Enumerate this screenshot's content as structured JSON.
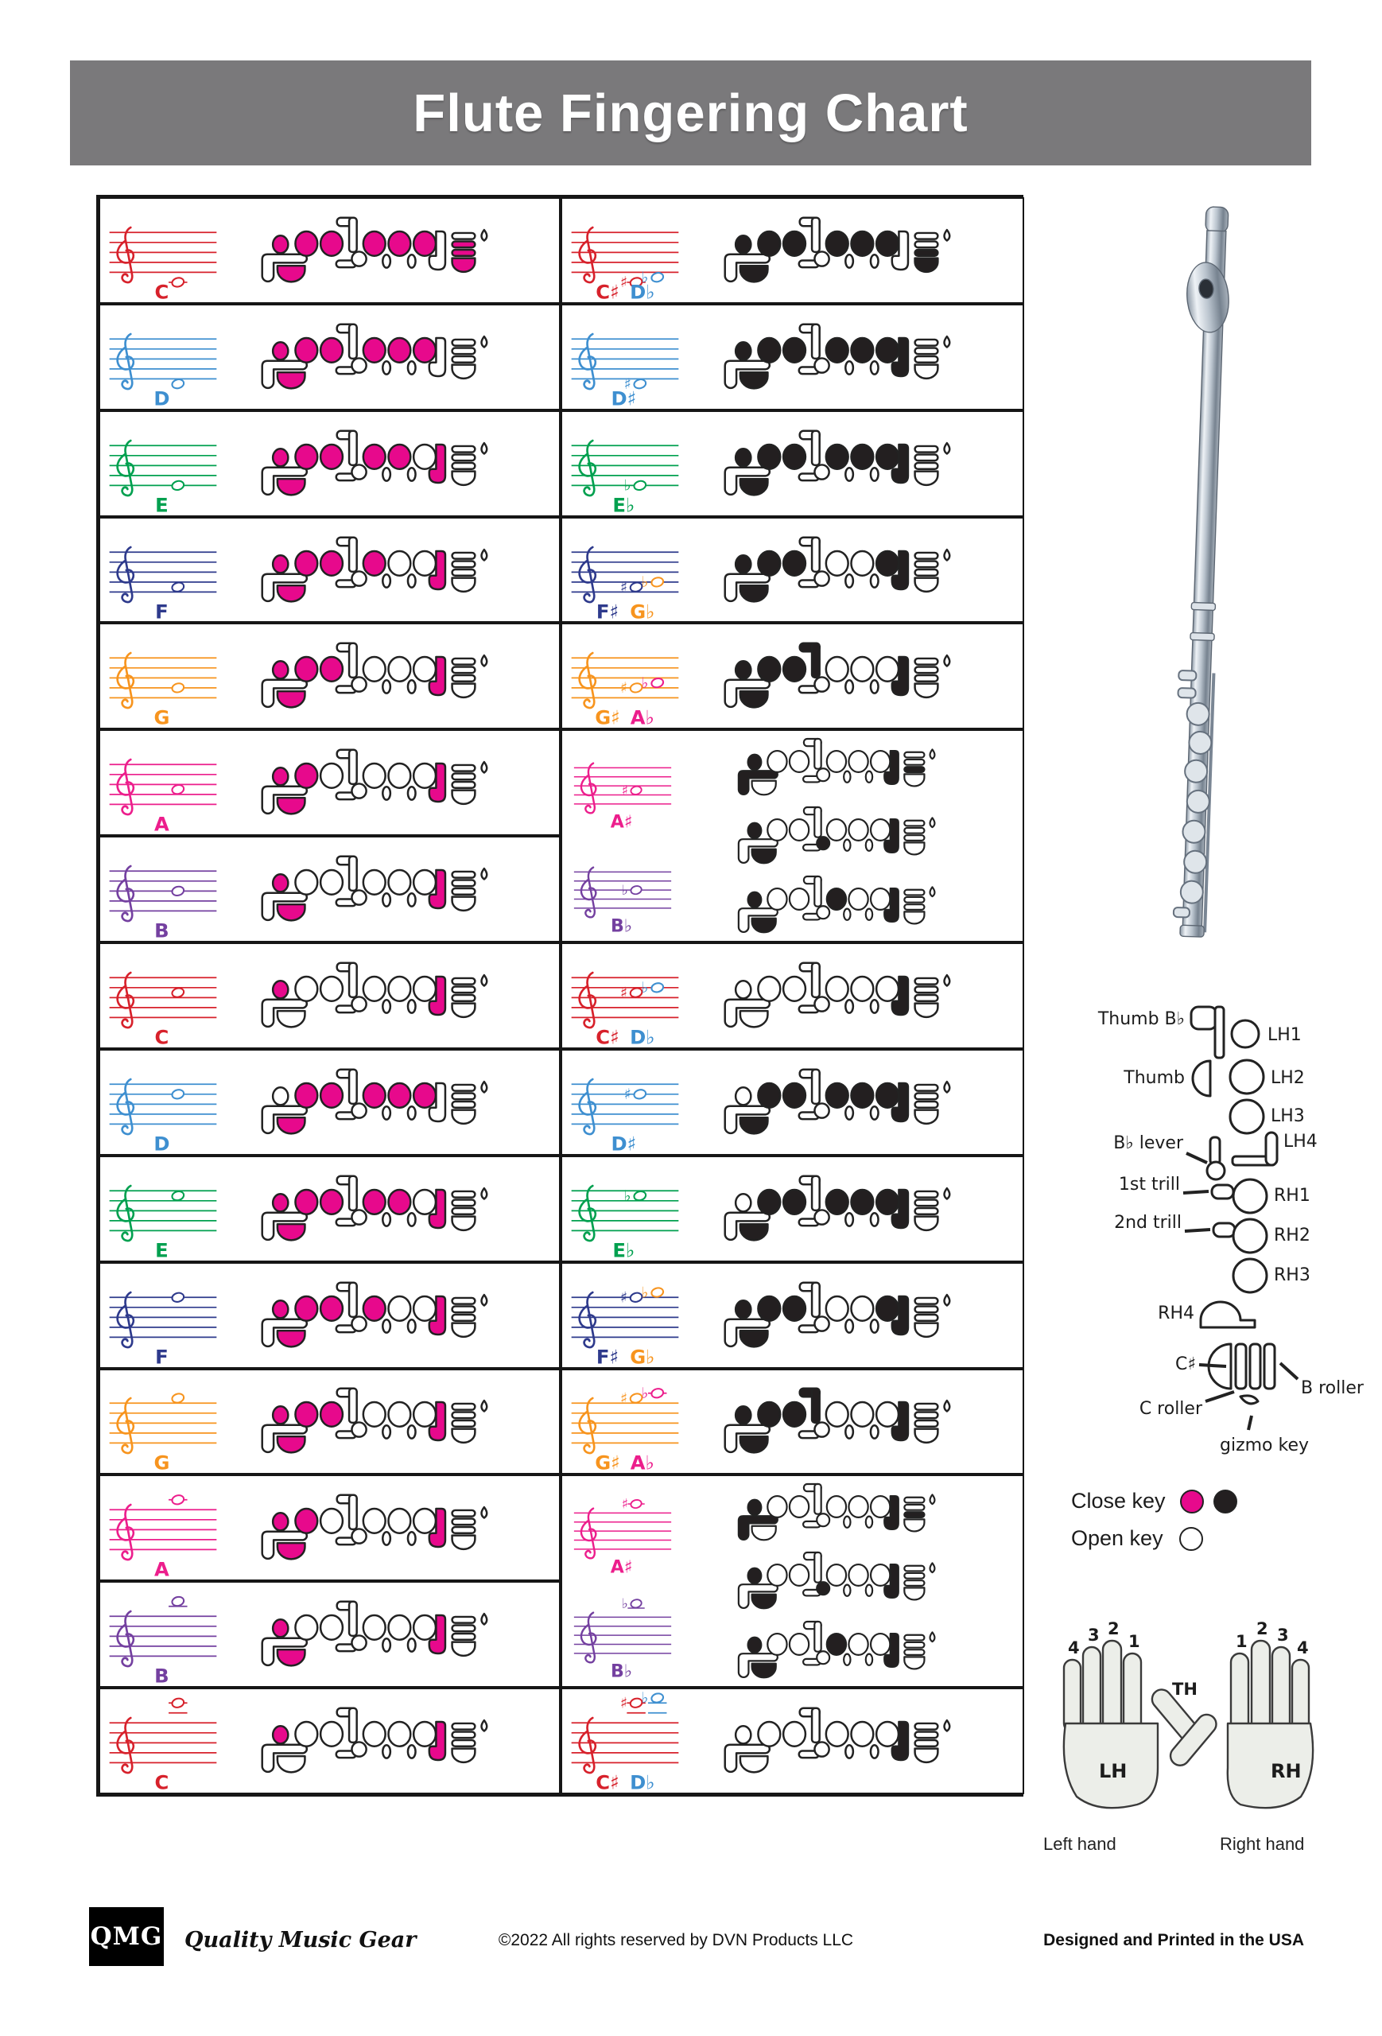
{
  "title": "Flute Fingering Chart",
  "colors": {
    "red": "#D7212B",
    "blue": "#3E8FD0",
    "green": "#00A04F",
    "navy": "#2E3A8C",
    "orange": "#F7941E",
    "pink": "#EC1E8C",
    "purple": "#7440A0",
    "close_pink": "#E7098C",
    "close_black": "#231F20",
    "title_gray": "#7A797B",
    "outline": "#222222"
  },
  "legend": {
    "close": "Close key",
    "open": "Open key"
  },
  "keymap": {
    "thumb_bb": "Thumb B♭",
    "thumb": "Thumb",
    "bb_lever": "B♭ lever",
    "trill1": "1st trill",
    "trill2": "2nd trill",
    "rh4": "RH4",
    "csharp": "C♯",
    "c_roller": "C roller",
    "b_roller": "B roller",
    "gizmo": "gizmo key",
    "lh1": "LH1",
    "lh2": "LH2",
    "lh3": "LH3",
    "lh4": "LH4",
    "rh1": "RH1",
    "rh2": "RH2",
    "rh3": "RH3"
  },
  "hands": {
    "lh": "LH",
    "rh": "RH",
    "th": "TH",
    "lh_fingers": [
      "4",
      "3",
      "2",
      "1"
    ],
    "rh_fingers": [
      "1",
      "2",
      "3",
      "4"
    ],
    "left_caption": "Left hand",
    "right_caption": "Right hand"
  },
  "footer": {
    "logo": "QMG",
    "tagline": "Quality Music Gear",
    "copyright": "©2022 All rights reserved by DVN Products LLC",
    "printed": "Designed and Printed in the USA"
  },
  "chart": {
    "ink_left": "close_pink",
    "ink_right": "close_black",
    "left": [
      {
        "color": "red",
        "names": [
          {
            "t": "C",
            "c": "red"
          }
        ],
        "notes": [
          {
            "s": -2,
            "c": "red"
          }
        ],
        "pressed": [
          "th",
          "l1",
          "l2",
          "l3",
          "r1",
          "r2",
          "r3",
          "cb",
          "xb",
          "xd"
        ]
      },
      {
        "color": "blue",
        "names": [
          {
            "t": "D",
            "c": "blue"
          }
        ],
        "notes": [
          {
            "s": -1,
            "c": "blue"
          }
        ],
        "pressed": [
          "th",
          "l1",
          "l2",
          "l3",
          "r1",
          "r2",
          "r3"
        ]
      },
      {
        "color": "green",
        "names": [
          {
            "t": "E",
            "c": "green"
          }
        ],
        "notes": [
          {
            "s": 0,
            "c": "green"
          }
        ],
        "pressed": [
          "th",
          "l1",
          "l2",
          "l3",
          "r1",
          "r2",
          "r4"
        ]
      },
      {
        "color": "navy",
        "names": [
          {
            "t": "F",
            "c": "navy"
          }
        ],
        "notes": [
          {
            "s": 1,
            "c": "navy"
          }
        ],
        "pressed": [
          "th",
          "l1",
          "l2",
          "l3",
          "r1",
          "r4"
        ]
      },
      {
        "color": "orange",
        "names": [
          {
            "t": "G",
            "c": "orange"
          }
        ],
        "notes": [
          {
            "s": 2,
            "c": "orange"
          }
        ],
        "pressed": [
          "th",
          "l1",
          "l2",
          "l3",
          "r4"
        ]
      },
      {
        "color": "pink",
        "names": [
          {
            "t": "A",
            "c": "pink"
          }
        ],
        "notes": [
          {
            "s": 3,
            "c": "pink"
          }
        ],
        "pressed": [
          "th",
          "l1",
          "l2",
          "r4"
        ]
      },
      {
        "color": "purple",
        "names": [
          {
            "t": "B",
            "c": "purple"
          }
        ],
        "notes": [
          {
            "s": 4,
            "c": "purple"
          }
        ],
        "pressed": [
          "th",
          "l1",
          "r4"
        ]
      },
      {
        "color": "red",
        "names": [
          {
            "t": "C",
            "c": "red"
          }
        ],
        "notes": [
          {
            "s": 5,
            "c": "red"
          }
        ],
        "pressed": [
          "l1",
          "r4"
        ]
      },
      {
        "color": "blue",
        "names": [
          {
            "t": "D",
            "c": "blue"
          }
        ],
        "notes": [
          {
            "s": 6,
            "c": "blue"
          }
        ],
        "pressed": [
          "th",
          "l2",
          "l3",
          "r1",
          "r2",
          "r3"
        ]
      },
      {
        "color": "green",
        "names": [
          {
            "t": "E",
            "c": "green"
          }
        ],
        "notes": [
          {
            "s": 7,
            "c": "green"
          }
        ],
        "pressed": [
          "th",
          "l1",
          "l2",
          "l3",
          "r1",
          "r2",
          "r4"
        ]
      },
      {
        "color": "navy",
        "names": [
          {
            "t": "F",
            "c": "navy"
          }
        ],
        "notes": [
          {
            "s": 8,
            "c": "navy"
          }
        ],
        "pressed": [
          "th",
          "l1",
          "l2",
          "l3",
          "r1",
          "r4"
        ]
      },
      {
        "color": "orange",
        "names": [
          {
            "t": "G",
            "c": "orange"
          }
        ],
        "notes": [
          {
            "s": 9,
            "c": "orange"
          }
        ],
        "pressed": [
          "th",
          "l1",
          "l2",
          "l3",
          "r4"
        ]
      },
      {
        "color": "pink",
        "names": [
          {
            "t": "A",
            "c": "pink"
          }
        ],
        "notes": [
          {
            "s": 10,
            "c": "pink"
          }
        ],
        "pressed": [
          "th",
          "l1",
          "l2",
          "r4"
        ]
      },
      {
        "color": "purple",
        "names": [
          {
            "t": "B",
            "c": "purple"
          }
        ],
        "notes": [
          {
            "s": 11,
            "c": "purple"
          }
        ],
        "pressed": [
          "th",
          "l1",
          "r4"
        ]
      },
      {
        "color": "red",
        "names": [
          {
            "t": "C",
            "c": "red"
          }
        ],
        "notes": [
          {
            "s": 12,
            "c": "red"
          }
        ],
        "pressed": [
          "l1",
          "r4"
        ]
      }
    ],
    "right": [
      {
        "span": 1,
        "staves": [
          {
            "color": "red",
            "names": [
              {
                "t": "C♯",
                "c": "red"
              },
              {
                "t": "D♭",
                "c": "blue"
              }
            ],
            "notes": [
              {
                "a": "♯",
                "s": -2,
                "c": "red"
              },
              {
                "a": "♭",
                "s": -1,
                "c": "blue"
              }
            ]
          }
        ],
        "fingerings": [
          [
            "th",
            "l1",
            "l2",
            "l3",
            "r1",
            "r2",
            "r3",
            "xb",
            "xd"
          ]
        ]
      },
      {
        "span": 1,
        "staves": [
          {
            "color": "blue",
            "names": [
              {
                "t": "D♯",
                "c": "blue"
              }
            ],
            "notes": [
              {
                "a": "♯",
                "s": -1,
                "c": "blue"
              }
            ]
          }
        ],
        "fingerings": [
          [
            "th",
            "l1",
            "l2",
            "l3",
            "r1",
            "r2",
            "r3",
            "r4"
          ]
        ]
      },
      {
        "span": 1,
        "staves": [
          {
            "color": "green",
            "names": [
              {
                "t": "E♭",
                "c": "green"
              }
            ],
            "notes": [
              {
                "a": "♭",
                "s": 0,
                "c": "green"
              }
            ]
          }
        ],
        "fingerings": [
          [
            "th",
            "l1",
            "l2",
            "l3",
            "r1",
            "r2",
            "r3",
            "r4"
          ]
        ]
      },
      {
        "span": 1,
        "staves": [
          {
            "color": "navy",
            "names": [
              {
                "t": "F♯",
                "c": "navy"
              },
              {
                "t": "G♭",
                "c": "orange"
              }
            ],
            "notes": [
              {
                "a": "♯",
                "s": 1,
                "c": "navy"
              },
              {
                "a": "♭",
                "s": 2,
                "c": "orange"
              }
            ]
          }
        ],
        "fingerings": [
          [
            "th",
            "l1",
            "l2",
            "l3",
            "r3",
            "r4"
          ]
        ]
      },
      {
        "span": 1,
        "staves": [
          {
            "color": "orange",
            "names": [
              {
                "t": "G♯",
                "c": "orange"
              },
              {
                "t": "A♭",
                "c": "pink"
              }
            ],
            "notes": [
              {
                "a": "♯",
                "s": 2,
                "c": "orange"
              },
              {
                "a": "♭",
                "s": 3,
                "c": "pink"
              }
            ]
          }
        ],
        "fingerings": [
          [
            "th",
            "l1",
            "l2",
            "l3",
            "g",
            "r4"
          ]
        ]
      },
      {
        "span": 2,
        "staves": [
          {
            "color": "pink",
            "names": [
              {
                "t": "A♯",
                "c": "pink"
              }
            ],
            "notes": [
              {
                "a": "♯",
                "s": 3,
                "c": "pink"
              }
            ]
          },
          {
            "color": "purple",
            "names": [
              {
                "t": "B♭",
                "c": "purple"
              }
            ],
            "notes": [
              {
                "a": "♭",
                "s": 4,
                "c": "purple"
              }
            ]
          }
        ],
        "fingerings": [
          [
            "tbb",
            "l1",
            "r4",
            "xb"
          ],
          [
            "th",
            "l1",
            "bl",
            "r4"
          ],
          [
            "th",
            "l1",
            "r1",
            "r4"
          ]
        ]
      },
      {
        "span": 1,
        "staves": [
          {
            "color": "red",
            "names": [
              {
                "t": "C♯",
                "c": "red"
              },
              {
                "t": "D♭",
                "c": "blue"
              }
            ],
            "notes": [
              {
                "a": "♯",
                "s": 5,
                "c": "red"
              },
              {
                "a": "♭",
                "s": 6,
                "c": "blue"
              }
            ]
          }
        ],
        "fingerings": [
          [
            "r4"
          ]
        ]
      },
      {
        "span": 1,
        "staves": [
          {
            "color": "blue",
            "names": [
              {
                "t": "D♯",
                "c": "blue"
              }
            ],
            "notes": [
              {
                "a": "♯",
                "s": 6,
                "c": "blue"
              }
            ]
          }
        ],
        "fingerings": [
          [
            "th",
            "l2",
            "l3",
            "r1",
            "r2",
            "r3",
            "r4"
          ]
        ]
      },
      {
        "span": 1,
        "staves": [
          {
            "color": "green",
            "names": [
              {
                "t": "E♭",
                "c": "green"
              }
            ],
            "notes": [
              {
                "a": "♭",
                "s": 7,
                "c": "green"
              }
            ]
          }
        ],
        "fingerings": [
          [
            "th",
            "l2",
            "l3",
            "r1",
            "r2",
            "r3",
            "r4"
          ]
        ]
      },
      {
        "span": 1,
        "staves": [
          {
            "color": "navy",
            "names": [
              {
                "t": "F♯",
                "c": "navy"
              },
              {
                "t": "G♭",
                "c": "orange"
              }
            ],
            "notes": [
              {
                "a": "♯",
                "s": 8,
                "c": "navy"
              },
              {
                "a": "♭",
                "s": 9,
                "c": "orange"
              }
            ]
          }
        ],
        "fingerings": [
          [
            "th",
            "l1",
            "l2",
            "l3",
            "r3",
            "r4"
          ]
        ]
      },
      {
        "span": 1,
        "staves": [
          {
            "color": "orange",
            "names": [
              {
                "t": "G♯",
                "c": "orange"
              },
              {
                "t": "A♭",
                "c": "pink"
              }
            ],
            "notes": [
              {
                "a": "♯",
                "s": 9,
                "c": "orange"
              },
              {
                "a": "♭",
                "s": 10,
                "c": "pink"
              }
            ]
          }
        ],
        "fingerings": [
          [
            "th",
            "l1",
            "l2",
            "l3",
            "g",
            "r4"
          ]
        ]
      },
      {
        "span": 2,
        "staves": [
          {
            "color": "pink",
            "names": [
              {
                "t": "A♯",
                "c": "pink"
              }
            ],
            "notes": [
              {
                "a": "♯",
                "s": 10,
                "c": "pink"
              }
            ]
          },
          {
            "color": "purple",
            "names": [
              {
                "t": "B♭",
                "c": "purple"
              }
            ],
            "notes": [
              {
                "a": "♭",
                "s": 11,
                "c": "purple"
              }
            ]
          }
        ],
        "fingerings": [
          [
            "tbb",
            "l1",
            "r4",
            "xb"
          ],
          [
            "th",
            "l1",
            "bl",
            "r4"
          ],
          [
            "th",
            "l1",
            "r1",
            "r4"
          ]
        ]
      },
      {
        "span": 1,
        "staves": [
          {
            "color": "red",
            "names": [
              {
                "t": "C♯",
                "c": "red"
              },
              {
                "t": "D♭",
                "c": "blue"
              }
            ],
            "notes": [
              {
                "a": "♯",
                "s": 12,
                "c": "red"
              },
              {
                "a": "♭",
                "s": 13,
                "c": "blue"
              }
            ]
          }
        ],
        "fingerings": [
          [
            "r4"
          ]
        ]
      }
    ]
  }
}
